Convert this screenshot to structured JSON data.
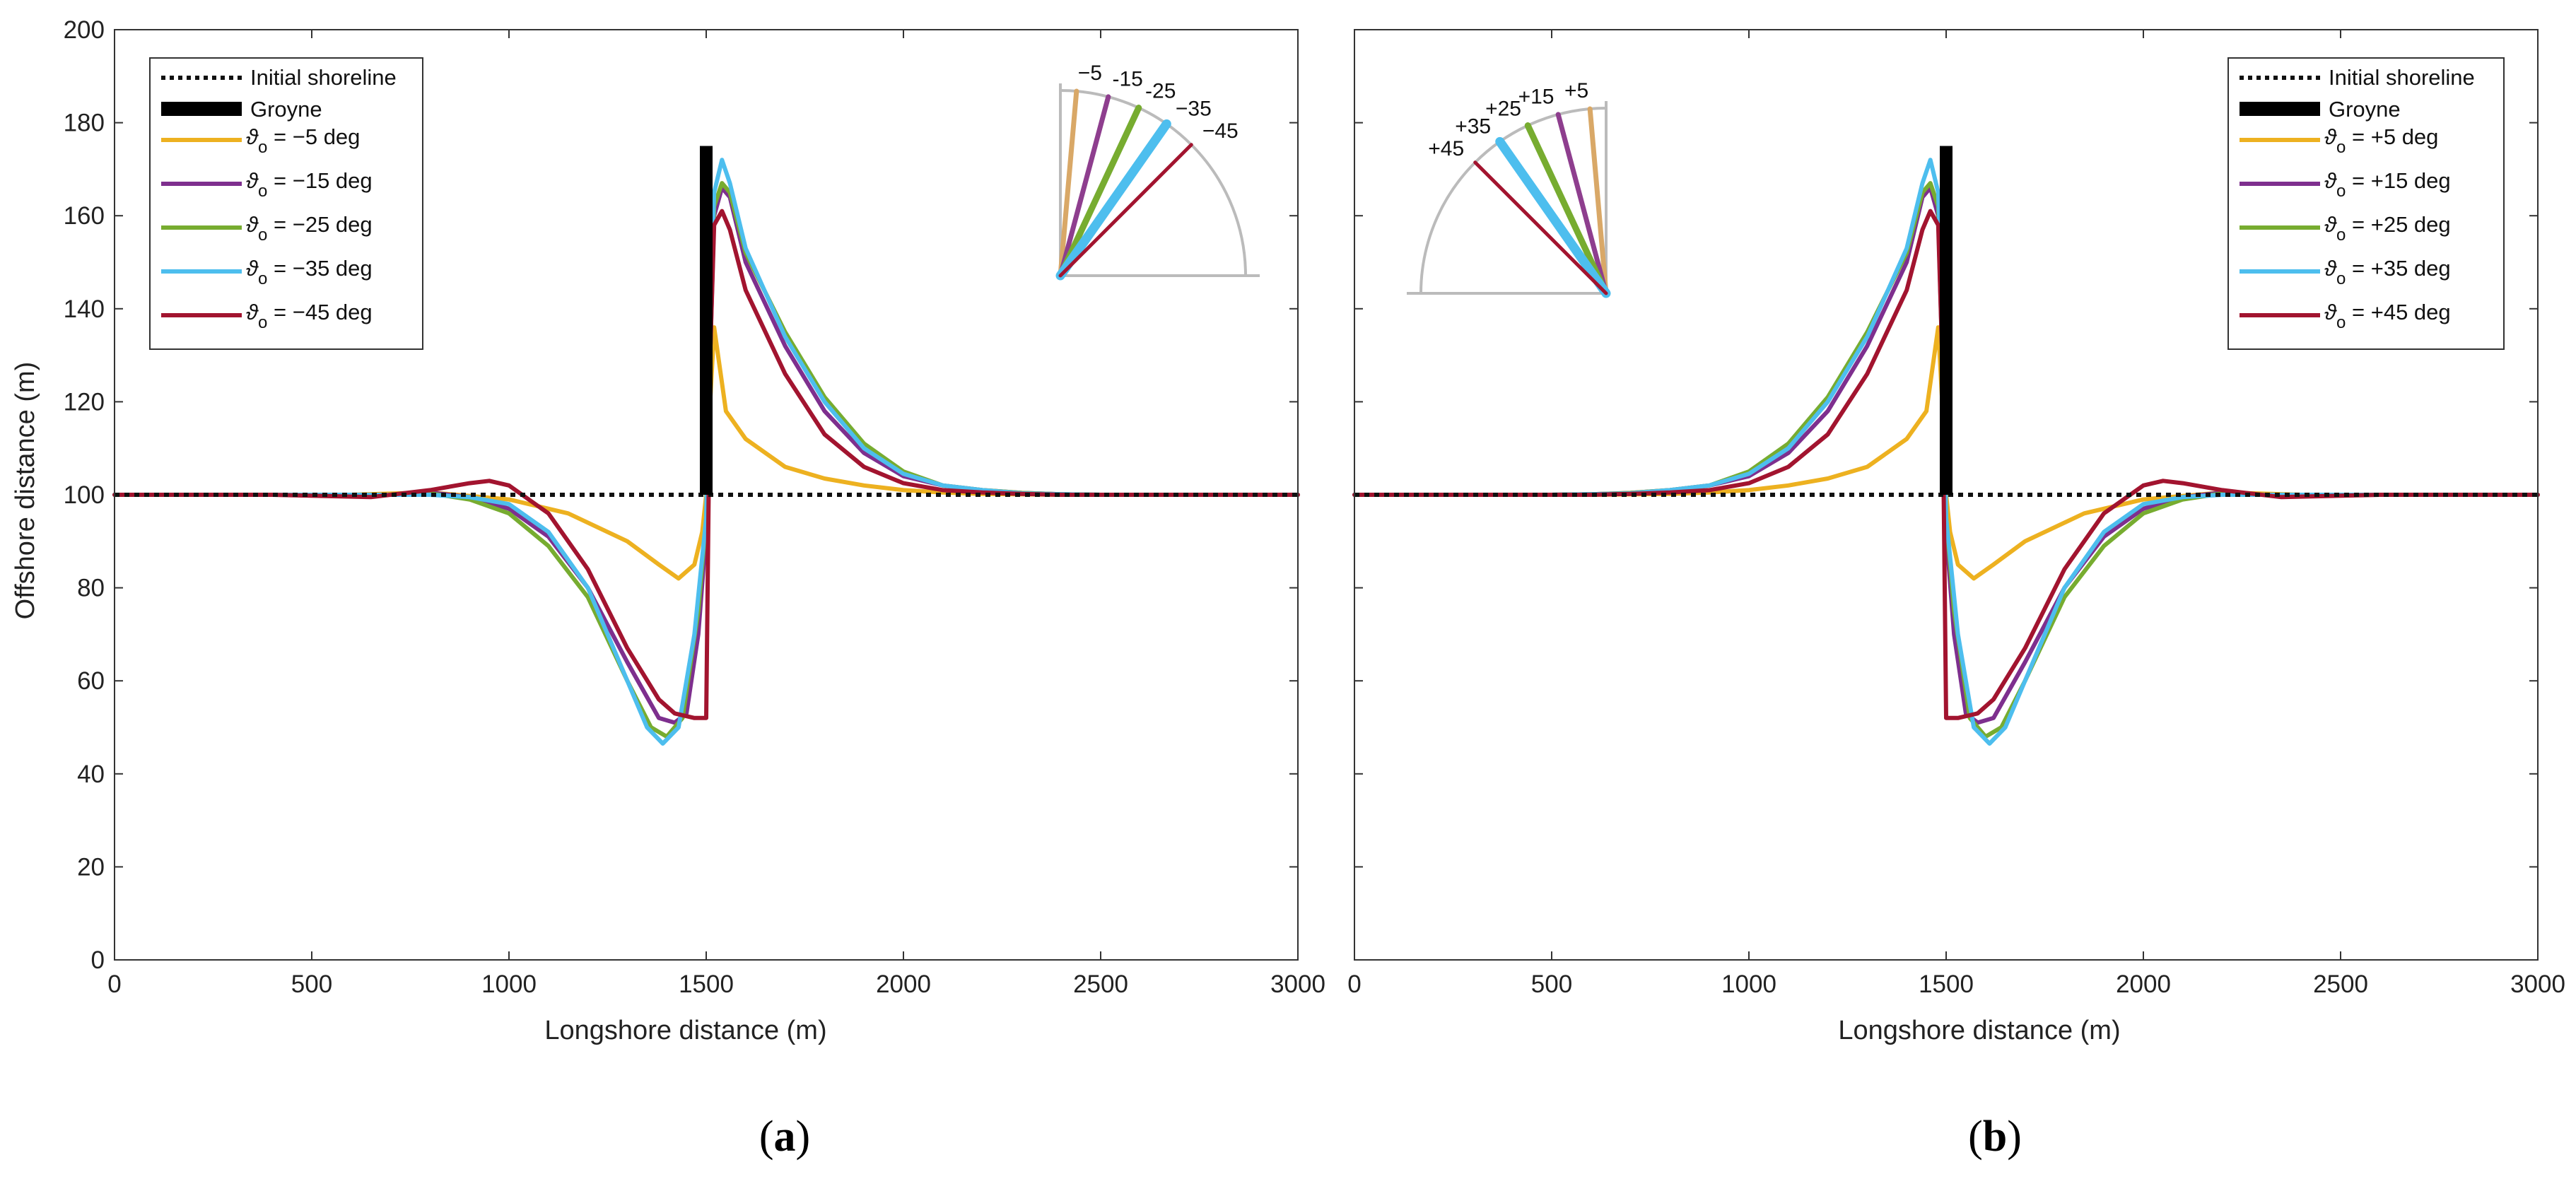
{
  "chart_data": [
    {
      "id": "a",
      "type": "line",
      "panel_label": "a",
      "xlabel": "Longshore distance (m)",
      "ylabel": "Offshore distance (m)",
      "xlim": [
        0,
        3000
      ],
      "ylim": [
        0,
        200
      ],
      "xticks": [
        0,
        500,
        1000,
        1500,
        2000,
        2500,
        3000
      ],
      "yticks": [
        0,
        20,
        40,
        60,
        80,
        100,
        120,
        140,
        160,
        180,
        200
      ],
      "legend_position": "top-left",
      "groyne": {
        "name": "Groyne",
        "x": 1500,
        "y_from": 100,
        "y_to": 175
      },
      "initial_shoreline": {
        "name": "Initial shoreline",
        "y": 100
      },
      "series": [
        {
          "symbol": "ϑ",
          "subscript": "o",
          "value_text": " = −5 deg",
          "color": "#EDB120",
          "x": [
            0,
            600,
            800,
            1000,
            1150,
            1300,
            1380,
            1430,
            1470,
            1490,
            1500,
            1510,
            1520,
            1550,
            1600,
            1700,
            1800,
            1900,
            2000,
            2100,
            2200,
            2400,
            3000
          ],
          "y": [
            100,
            100,
            100.5,
            99,
            96,
            90,
            85,
            82,
            85,
            92,
            100,
            120,
            136,
            118,
            112,
            106,
            103.5,
            102,
            101,
            100.5,
            100.2,
            100,
            100
          ]
        },
        {
          "symbol": "ϑ",
          "subscript": "o",
          "value_text": " = −15 deg",
          "color": "#7E2F8E",
          "x": [
            0,
            600,
            700,
            800,
            900,
            1000,
            1100,
            1200,
            1300,
            1380,
            1420,
            1450,
            1480,
            1500,
            1510,
            1520,
            1540,
            1560,
            1600,
            1700,
            1800,
            1900,
            2000,
            2100,
            2200,
            2300,
            2400,
            2500,
            3000
          ],
          "y": [
            100,
            100,
            100,
            100.5,
            99.5,
            97,
            91,
            80,
            64,
            52,
            51,
            53,
            70,
            92,
            130,
            160,
            166,
            164,
            150,
            132,
            118,
            109,
            104,
            102,
            101,
            100.4,
            100.1,
            100,
            100
          ]
        },
        {
          "symbol": "ϑ",
          "subscript": "o",
          "value_text": " = −25 deg",
          "color": "#77AC30",
          "x": [
            0,
            600,
            700,
            800,
            900,
            1000,
            1100,
            1200,
            1300,
            1360,
            1400,
            1440,
            1480,
            1500,
            1510,
            1520,
            1540,
            1560,
            1600,
            1700,
            1800,
            1900,
            2000,
            2100,
            2200,
            2300,
            2400,
            2500,
            3000
          ],
          "y": [
            100,
            100,
            100,
            100.3,
            99,
            96,
            89,
            78,
            60,
            50,
            48,
            52,
            75,
            95,
            135,
            162,
            167,
            165,
            152,
            135,
            121,
            111,
            105,
            102,
            101,
            100.4,
            100.1,
            100,
            100
          ]
        },
        {
          "symbol": "ϑ",
          "subscript": "o",
          "value_text": " = −35 deg",
          "color": "#4DBEEE",
          "x": [
            0,
            600,
            700,
            800,
            900,
            1000,
            1100,
            1200,
            1300,
            1350,
            1390,
            1430,
            1470,
            1500,
            1510,
            1520,
            1540,
            1560,
            1600,
            1700,
            1800,
            1900,
            2000,
            2100,
            2200,
            2300,
            2400,
            2500,
            3000
          ],
          "y": [
            100,
            100,
            100,
            100,
            99.5,
            98,
            92,
            80,
            60,
            50,
            46.5,
            50,
            70,
            95,
            140,
            165,
            172,
            167,
            153,
            134,
            120,
            110,
            104.5,
            102,
            101,
            100.3,
            100.1,
            100,
            100
          ]
        },
        {
          "symbol": "ϑ",
          "subscript": "o",
          "value_text": " = −45 deg",
          "color": "#A2142F",
          "x": [
            0,
            400,
            650,
            800,
            900,
            950,
            1000,
            1100,
            1200,
            1300,
            1380,
            1420,
            1470,
            1500,
            1510,
            1520,
            1540,
            1560,
            1600,
            1700,
            1800,
            1900,
            2000,
            2100,
            2200,
            2300,
            2400,
            2500,
            3000
          ],
          "y": [
            100,
            100,
            99.5,
            101,
            102.5,
            103,
            102,
            96,
            84,
            67,
            56,
            53,
            52,
            52,
            130,
            158,
            161,
            157,
            144,
            126,
            113,
            106,
            102.5,
            101,
            100.5,
            100.2,
            100,
            100,
            100
          ]
        }
      ],
      "inset": {
        "angles": [
          -5,
          -15,
          -25,
          -35,
          -45
        ],
        "labels": [
          "−5",
          "-15",
          "-25",
          "−35",
          "−45"
        ]
      }
    },
    {
      "id": "b",
      "type": "line",
      "panel_label": "b",
      "xlabel": "Longshore distance (m)",
      "ylabel": "",
      "xlim": [
        0,
        3000
      ],
      "ylim": [
        0,
        200
      ],
      "xticks": [
        0,
        500,
        1000,
        1500,
        2000,
        2500,
        3000
      ],
      "yticks": [
        0,
        20,
        40,
        60,
        80,
        100,
        120,
        140,
        160,
        180,
        200
      ],
      "legend_position": "top-right",
      "groyne": {
        "name": "Groyne",
        "x": 1500,
        "y_from": 100,
        "y_to": 175
      },
      "initial_shoreline": {
        "name": "Initial shoreline",
        "y": 100
      },
      "mirror_of": "a",
      "series_labels": [
        {
          "symbol": "ϑ",
          "subscript": "o",
          "value_text": " = +5 deg",
          "color": "#EDB120"
        },
        {
          "symbol": "ϑ",
          "subscript": "o",
          "value_text": " = +15 deg",
          "color": "#7E2F8E"
        },
        {
          "symbol": "ϑ",
          "subscript": "o",
          "value_text": " = +25 deg",
          "color": "#77AC30"
        },
        {
          "symbol": "ϑ",
          "subscript": "o",
          "value_text": " = +35 deg",
          "color": "#4DBEEE"
        },
        {
          "symbol": "ϑ",
          "subscript": "o",
          "value_text": " = +45 deg",
          "color": "#A2142F"
        }
      ],
      "inset": {
        "angles": [
          5,
          15,
          25,
          35,
          45
        ],
        "labels": [
          "+5",
          "+15",
          "+25",
          "+35",
          "+45"
        ]
      }
    }
  ],
  "captions": {
    "a": "(a)",
    "b": "(b)"
  },
  "colors": {
    "shoreline": "#111111",
    "groyne": "#000000",
    "inset_arc": "#BBBBBB"
  }
}
